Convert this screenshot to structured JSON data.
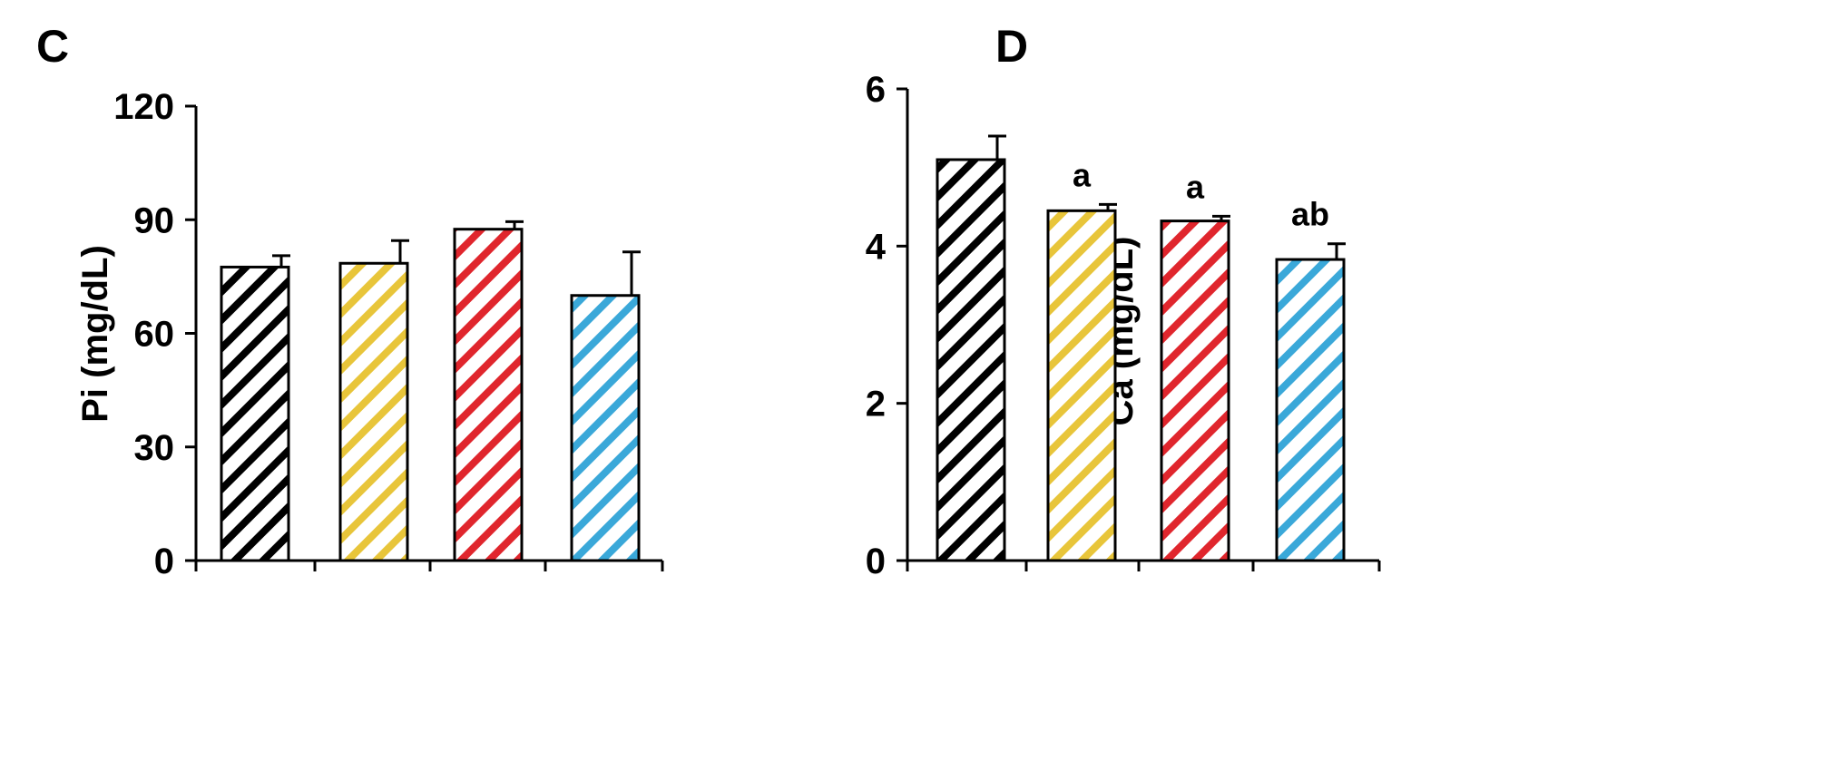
{
  "chart_data": [
    {
      "panel_label": "C",
      "type": "bar",
      "categories": [
        "",
        "",
        "",
        ""
      ],
      "values": [
        77.5,
        78.5,
        87.5,
        70.0
      ],
      "error": [
        3.0,
        6.0,
        2.0,
        11.5
      ],
      "annotations": [
        "",
        "",
        "",
        ""
      ],
      "ylabel": "Pi (mg/dL)",
      "ylim": [
        0,
        120
      ],
      "yticks": [
        0,
        30,
        60,
        90,
        120
      ],
      "grid": false,
      "bar_colors": [
        "#000000",
        "#e8c53a",
        "#e0262d",
        "#3aa8d9"
      ],
      "bar_pattern": "diagonal-stripes"
    },
    {
      "panel_label": "D",
      "type": "bar",
      "categories": [
        "",
        "",
        "",
        ""
      ],
      "values": [
        5.1,
        4.45,
        4.32,
        3.83
      ],
      "error": [
        0.3,
        0.08,
        0.06,
        0.2
      ],
      "annotations": [
        "",
        "a",
        "a",
        "ab"
      ],
      "ylabel": "Ca (mg/dL)",
      "ylim": [
        0,
        6
      ],
      "yticks": [
        0,
        2,
        4,
        6
      ],
      "grid": false,
      "bar_colors": [
        "#000000",
        "#e8c53a",
        "#e0262d",
        "#3aa8d9"
      ],
      "bar_pattern": "diagonal-stripes"
    }
  ]
}
